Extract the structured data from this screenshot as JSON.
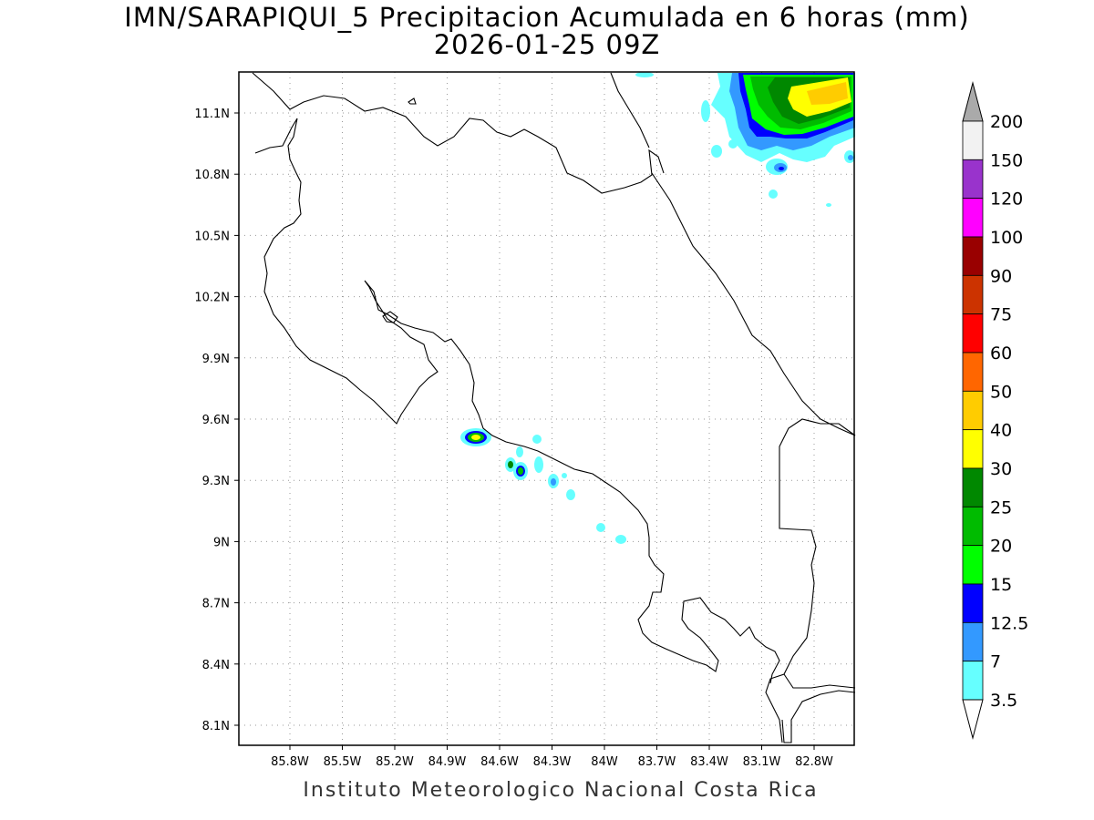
{
  "title": {
    "line1": "IMN/SARAPIQUI_5 Precipitacion Acumulada en 6 horas (mm)",
    "line2": "2026-01-25 09Z"
  },
  "footer": "Instituto Meteorologico Nacional Costa Rica",
  "map": {
    "lon_range": [
      -86.0,
      -82.7
    ],
    "lat_range": [
      8.0,
      11.3
    ],
    "x_ticks": [
      "85.8W",
      "85.5W",
      "85.2W",
      "84.9W",
      "84.6W",
      "84.3W",
      "84W",
      "83.7W",
      "83.4W",
      "83.1W",
      "82.8W"
    ],
    "y_ticks": [
      "11.1N",
      "10.8N",
      "10.5N",
      "10.2N",
      "9.9N",
      "9.6N",
      "9.3N",
      "9N",
      "8.7N",
      "8.4N",
      "8.1N"
    ],
    "gridlines": true
  },
  "colorbar": {
    "levels": [
      "200",
      "150",
      "120",
      "100",
      "90",
      "75",
      "60",
      "50",
      "40",
      "30",
      "25",
      "20",
      "15",
      "12.5",
      "7",
      "3.5"
    ],
    "colors": [
      "#f2f2f2",
      "#9933cc",
      "#ff00ff",
      "#990000",
      "#cc3300",
      "#ff0000",
      "#ff6600",
      "#ffcc00",
      "#ffff00",
      "#008800",
      "#00bb00",
      "#00ff00",
      "#0000ff",
      "#3399ff",
      "#66ffff"
    ],
    "over_color": "#aaaaaa",
    "under_color": "#ffffff"
  }
}
